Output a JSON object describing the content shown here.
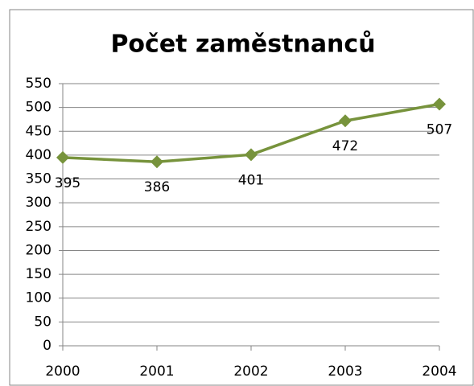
{
  "chart_data": {
    "type": "line",
    "title": "Počet zaměstnanců",
    "x": [
      2000,
      2001,
      2002,
      2003,
      2004
    ],
    "series": [
      {
        "name": "Počet zaměstnanců",
        "color": "#77933c",
        "values": [
          395,
          386,
          401,
          472,
          507
        ]
      }
    ],
    "xlim": [
      2000,
      2004
    ],
    "xticks": [
      2000,
      2001,
      2002,
      2003,
      2004
    ],
    "ylim": [
      0,
      550
    ],
    "yticks": [
      0,
      50,
      100,
      150,
      200,
      250,
      300,
      350,
      400,
      450,
      500,
      550
    ],
    "grid": true
  }
}
